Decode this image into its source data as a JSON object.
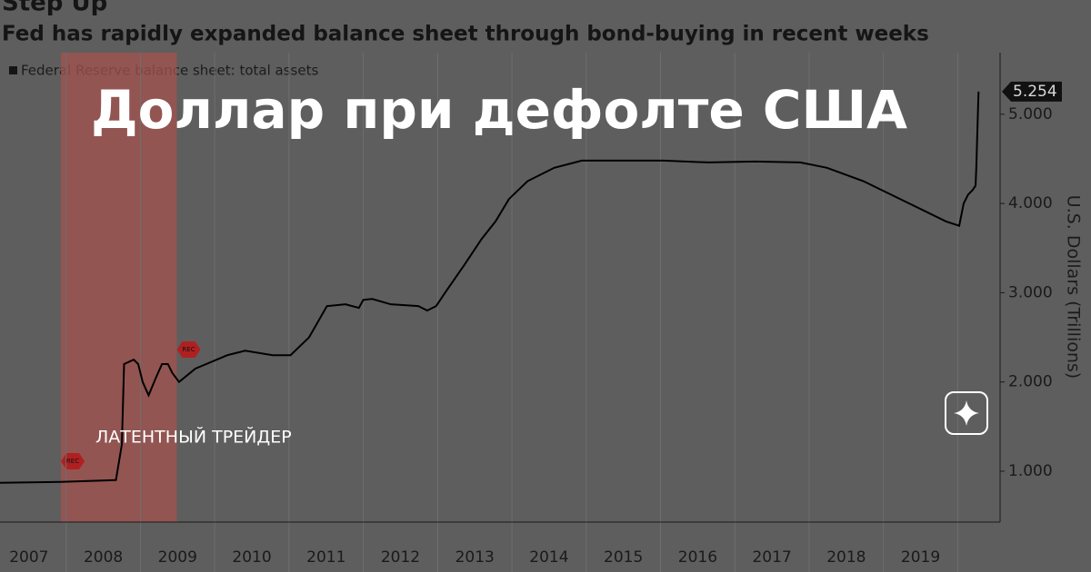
{
  "chart_data": {
    "type": "line",
    "title": "Step Up",
    "subtitle": "Fed has rapidly expanded balance sheet through bond-buying in recent weeks",
    "y_label": "U.S. Dollars (Trillions)",
    "series": [
      {
        "name": "Federal Reserve balance sheet: total assets",
        "color": "#000000",
        "x": [
          2007.11,
          2007.93,
          2008.67,
          2008.75,
          2008.78,
          2008.91,
          2008.97,
          2009.03,
          2009.11,
          2009.21,
          2009.29,
          2009.37,
          2009.43,
          2009.52,
          2009.74,
          2010.17,
          2010.41,
          2010.78,
          2011.02,
          2011.27,
          2011.51,
          2011.76,
          2011.94,
          2012.0,
          2012.12,
          2012.37,
          2012.74,
          2012.86,
          2012.98,
          2013.1,
          2013.35,
          2013.59,
          2013.78,
          2013.96,
          2014.21,
          2014.57,
          2014.94,
          2015.43,
          2016.04,
          2016.65,
          2017.27,
          2017.88,
          2018.24,
          2018.73,
          2019.1,
          2019.47,
          2019.84,
          2020.02,
          2020.08,
          2020.14,
          2020.2,
          2020.24,
          2020.25,
          2020.28
        ],
        "values": [
          0.87,
          0.88,
          0.9,
          1.3,
          2.2,
          2.25,
          2.2,
          2.0,
          1.85,
          2.05,
          2.2,
          2.2,
          2.1,
          2.0,
          2.15,
          2.3,
          2.35,
          2.3,
          2.3,
          2.5,
          2.85,
          2.87,
          2.83,
          2.92,
          2.93,
          2.87,
          2.85,
          2.8,
          2.85,
          3.0,
          3.3,
          3.6,
          3.8,
          4.05,
          4.25,
          4.4,
          4.48,
          4.48,
          4.48,
          4.46,
          4.47,
          4.46,
          4.4,
          4.25,
          4.1,
          3.95,
          3.8,
          3.75,
          4.0,
          4.1,
          4.15,
          4.2,
          4.4,
          5.254
        ]
      }
    ],
    "xlim": [
      2007.11,
      2020.57
    ],
    "ylim": [
      0.43,
      5.69
    ],
    "xticks": [
      {
        "value": 2007.5,
        "label": "2007"
      },
      {
        "value": 2008.5,
        "label": "2008"
      },
      {
        "value": 2009.5,
        "label": "2009"
      },
      {
        "value": 2010.5,
        "label": "2010"
      },
      {
        "value": 2011.5,
        "label": "2011"
      },
      {
        "value": 2012.5,
        "label": "2012"
      },
      {
        "value": 2013.5,
        "label": "2013"
      },
      {
        "value": 2014.5,
        "label": "2014"
      },
      {
        "value": 2015.5,
        "label": "2015"
      },
      {
        "value": 2016.5,
        "label": "2016"
      },
      {
        "value": 2017.5,
        "label": "2017"
      },
      {
        "value": 2018.5,
        "label": "2018"
      },
      {
        "value": 2019.5,
        "label": "2019"
      }
    ],
    "xgrid": [
      2008,
      2009,
      2010,
      2011,
      2012,
      2013,
      2014,
      2015,
      2016,
      2017,
      2018,
      2019,
      2020
    ],
    "yticks": [
      {
        "value": 1,
        "label": "1.000"
      },
      {
        "value": 2,
        "label": "2.000"
      },
      {
        "value": 3,
        "label": "3.000"
      },
      {
        "value": 4,
        "label": "4.000"
      },
      {
        "value": 5,
        "label": "5.000"
      }
    ],
    "recession": {
      "start": 2007.93,
      "end": 2009.49,
      "label": "REC"
    }
  },
  "overlay": {
    "headline": "Доллар при дефолте США",
    "channel": "ЛАТЕНТНЫЙ ТРЕЙДЕР"
  }
}
